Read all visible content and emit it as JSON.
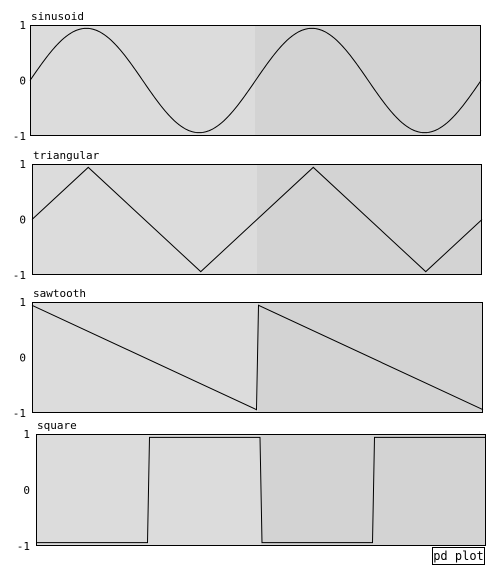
{
  "chart_data": [
    {
      "type": "line",
      "title": "sinusoid",
      "yticks": [
        "1",
        "0",
        "-1"
      ],
      "ylim": [
        -1,
        1
      ],
      "series": [
        {
          "values": [
            0,
            1,
            0,
            -1,
            0,
            1,
            0,
            -1,
            0
          ]
        }
      ]
    },
    {
      "type": "line",
      "title": "triangular",
      "yticks": [
        "1",
        "0",
        "-1"
      ],
      "ylim": [
        -1,
        1
      ],
      "series": [
        {
          "values": [
            0,
            1,
            0,
            -1,
            0,
            1,
            0,
            -1,
            0
          ]
        }
      ]
    },
    {
      "type": "line",
      "title": "sawtooth",
      "yticks": [
        "1",
        "0",
        "-1"
      ],
      "ylim": [
        -1,
        1
      ],
      "series": [
        {
          "values": [
            1,
            -1,
            1,
            -1
          ]
        }
      ]
    },
    {
      "type": "line",
      "title": "square",
      "yticks": [
        "1",
        "0",
        "-1"
      ],
      "ylim": [
        -1,
        1
      ],
      "series": [
        {
          "values": [
            -1,
            1,
            -1,
            1
          ]
        }
      ]
    }
  ],
  "toolbar": {
    "plot_button_label": "pd plot"
  }
}
